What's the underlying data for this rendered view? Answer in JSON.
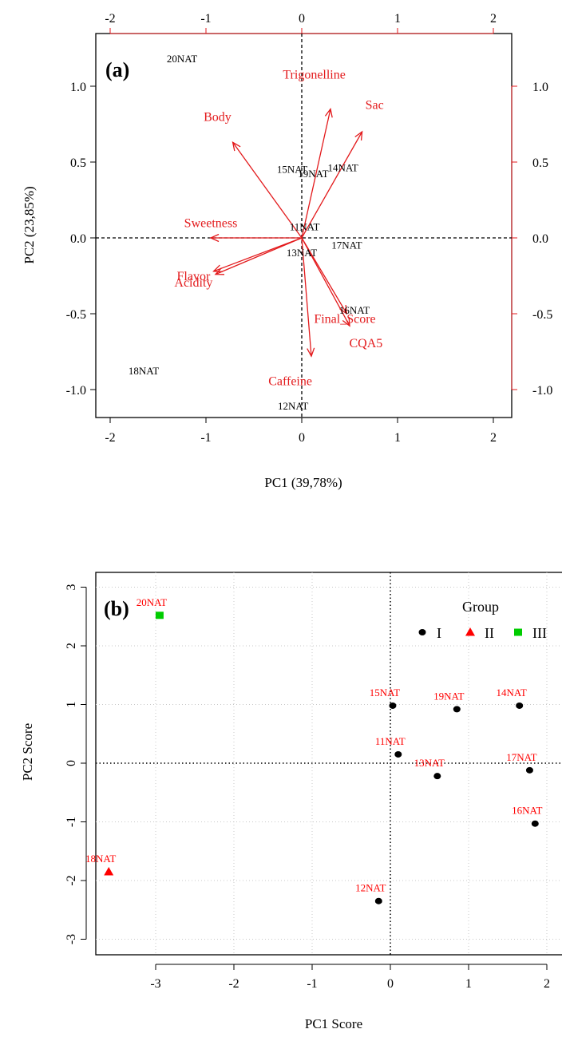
{
  "chart_data": [
    {
      "type": "scatter",
      "subtype": "biplot",
      "panel_label": "(a)",
      "xlabel": "PC1 (39,78%)",
      "ylabel": "PC2 (23,85%)",
      "xlim": [
        -2.05,
        2.05
      ],
      "ylim": [
        -1.15,
        1.2
      ],
      "x_ticks": [
        -2,
        -1,
        0,
        1,
        2
      ],
      "y_ticks": [
        -1.0,
        -0.5,
        0.0,
        0.5,
        1.0
      ],
      "x_tick_labels": [
        "-2",
        "-1",
        "0",
        "1",
        "2"
      ],
      "y_tick_labels": [
        "-1.0",
        "-0.5",
        "0.0",
        "0.5",
        "1.0"
      ],
      "top_tick_labels": [
        "-2",
        "-1",
        "0",
        "1",
        "2"
      ],
      "right_tick_labels": [
        "-1.0",
        "-0.5",
        "0.0",
        "0.5",
        "1.0"
      ],
      "zero_lines": true,
      "sample_color": "#000000",
      "vector_color": "#e31a1c",
      "samples": [
        {
          "label": "20NAT",
          "x": -1.25,
          "y": 1.18
        },
        {
          "label": "15NAT",
          "x": -0.1,
          "y": 0.45
        },
        {
          "label": "19NAT",
          "x": 0.12,
          "y": 0.42
        },
        {
          "label": "14NAT",
          "x": 0.43,
          "y": 0.46
        },
        {
          "label": "11NAT",
          "x": 0.03,
          "y": 0.07
        },
        {
          "label": "17NAT",
          "x": 0.47,
          "y": -0.05
        },
        {
          "label": "13NAT",
          "x": 0.0,
          "y": -0.1
        },
        {
          "label": "16NAT",
          "x": 0.55,
          "y": -0.48
        },
        {
          "label": "18NAT",
          "x": -1.65,
          "y": -0.88
        },
        {
          "label": "12NAT",
          "x": -0.09,
          "y": -1.11
        }
      ],
      "vectors": [
        {
          "label": "Trigonelline",
          "x": 0.3,
          "y": 0.85,
          "lx": 0.13,
          "ly": 1.05
        },
        {
          "label": "Sac",
          "x": 0.63,
          "y": 0.7,
          "lx": 0.76,
          "ly": 0.85
        },
        {
          "label": "Body",
          "x": -0.72,
          "y": 0.63,
          "lx": -0.88,
          "ly": 0.77
        },
        {
          "label": "Sweetness",
          "x": -0.95,
          "y": 0.0,
          "lx": -0.95,
          "ly": 0.07
        },
        {
          "label": "Flavor",
          "x": -0.92,
          "y": -0.22,
          "lx": -1.13,
          "ly": -0.28
        },
        {
          "label": "Acidity",
          "x": -0.9,
          "y": -0.24,
          "lx": -1.13,
          "ly": -0.32
        },
        {
          "label": "Final_Score",
          "x": 0.47,
          "y": -0.5,
          "lx": 0.45,
          "ly": -0.56
        },
        {
          "label": "CQA5",
          "x": 0.5,
          "y": -0.58,
          "lx": 0.67,
          "ly": -0.72
        },
        {
          "label": "Caffeine",
          "x": 0.1,
          "y": -0.78,
          "lx": -0.12,
          "ly": -0.97
        }
      ]
    },
    {
      "type": "scatter",
      "panel_label": "(b)",
      "xlabel": "PC1 Score",
      "ylabel": "PC2 Score",
      "xlim": [
        -3.75,
        2.1
      ],
      "ylim": [
        -3.15,
        3.2
      ],
      "x_ticks": [
        -3,
        -2,
        -1,
        0,
        1,
        2
      ],
      "y_ticks": [
        -3,
        -2,
        -1,
        0,
        1,
        2,
        3
      ],
      "x_tick_labels": [
        "-3",
        "-2",
        "-1",
        "0",
        "1",
        "2"
      ],
      "y_tick_labels": [
        "-3",
        "-2",
        "-1",
        "0",
        "1",
        "2",
        "3"
      ],
      "grid": true,
      "legend": {
        "title": "Group",
        "position": "top-right",
        "entries": [
          {
            "name": "I",
            "color": "#000000",
            "shape": "circle"
          },
          {
            "name": "II",
            "color": "#ff0000",
            "shape": "triangle"
          },
          {
            "name": "III",
            "color": "#00cc00",
            "shape": "square"
          }
        ]
      },
      "label_color": "#ff0000",
      "points": [
        {
          "label": "20NAT",
          "x": -2.95,
          "y": 2.52,
          "group": "III"
        },
        {
          "label": "15NAT",
          "x": 0.03,
          "y": 0.98,
          "group": "I"
        },
        {
          "label": "19NAT",
          "x": 0.85,
          "y": 0.92,
          "group": "I"
        },
        {
          "label": "14NAT",
          "x": 1.65,
          "y": 0.98,
          "group": "I"
        },
        {
          "label": "11NAT",
          "x": 0.1,
          "y": 0.15,
          "group": "I"
        },
        {
          "label": "13NAT",
          "x": 0.6,
          "y": -0.22,
          "group": "I"
        },
        {
          "label": "17NAT",
          "x": 1.78,
          "y": -0.12,
          "group": "I"
        },
        {
          "label": "16NAT",
          "x": 1.85,
          "y": -1.03,
          "group": "I"
        },
        {
          "label": "18NAT",
          "x": -3.6,
          "y": -1.85,
          "group": "II"
        },
        {
          "label": "12NAT",
          "x": -0.15,
          "y": -2.35,
          "group": "I"
        }
      ]
    }
  ]
}
